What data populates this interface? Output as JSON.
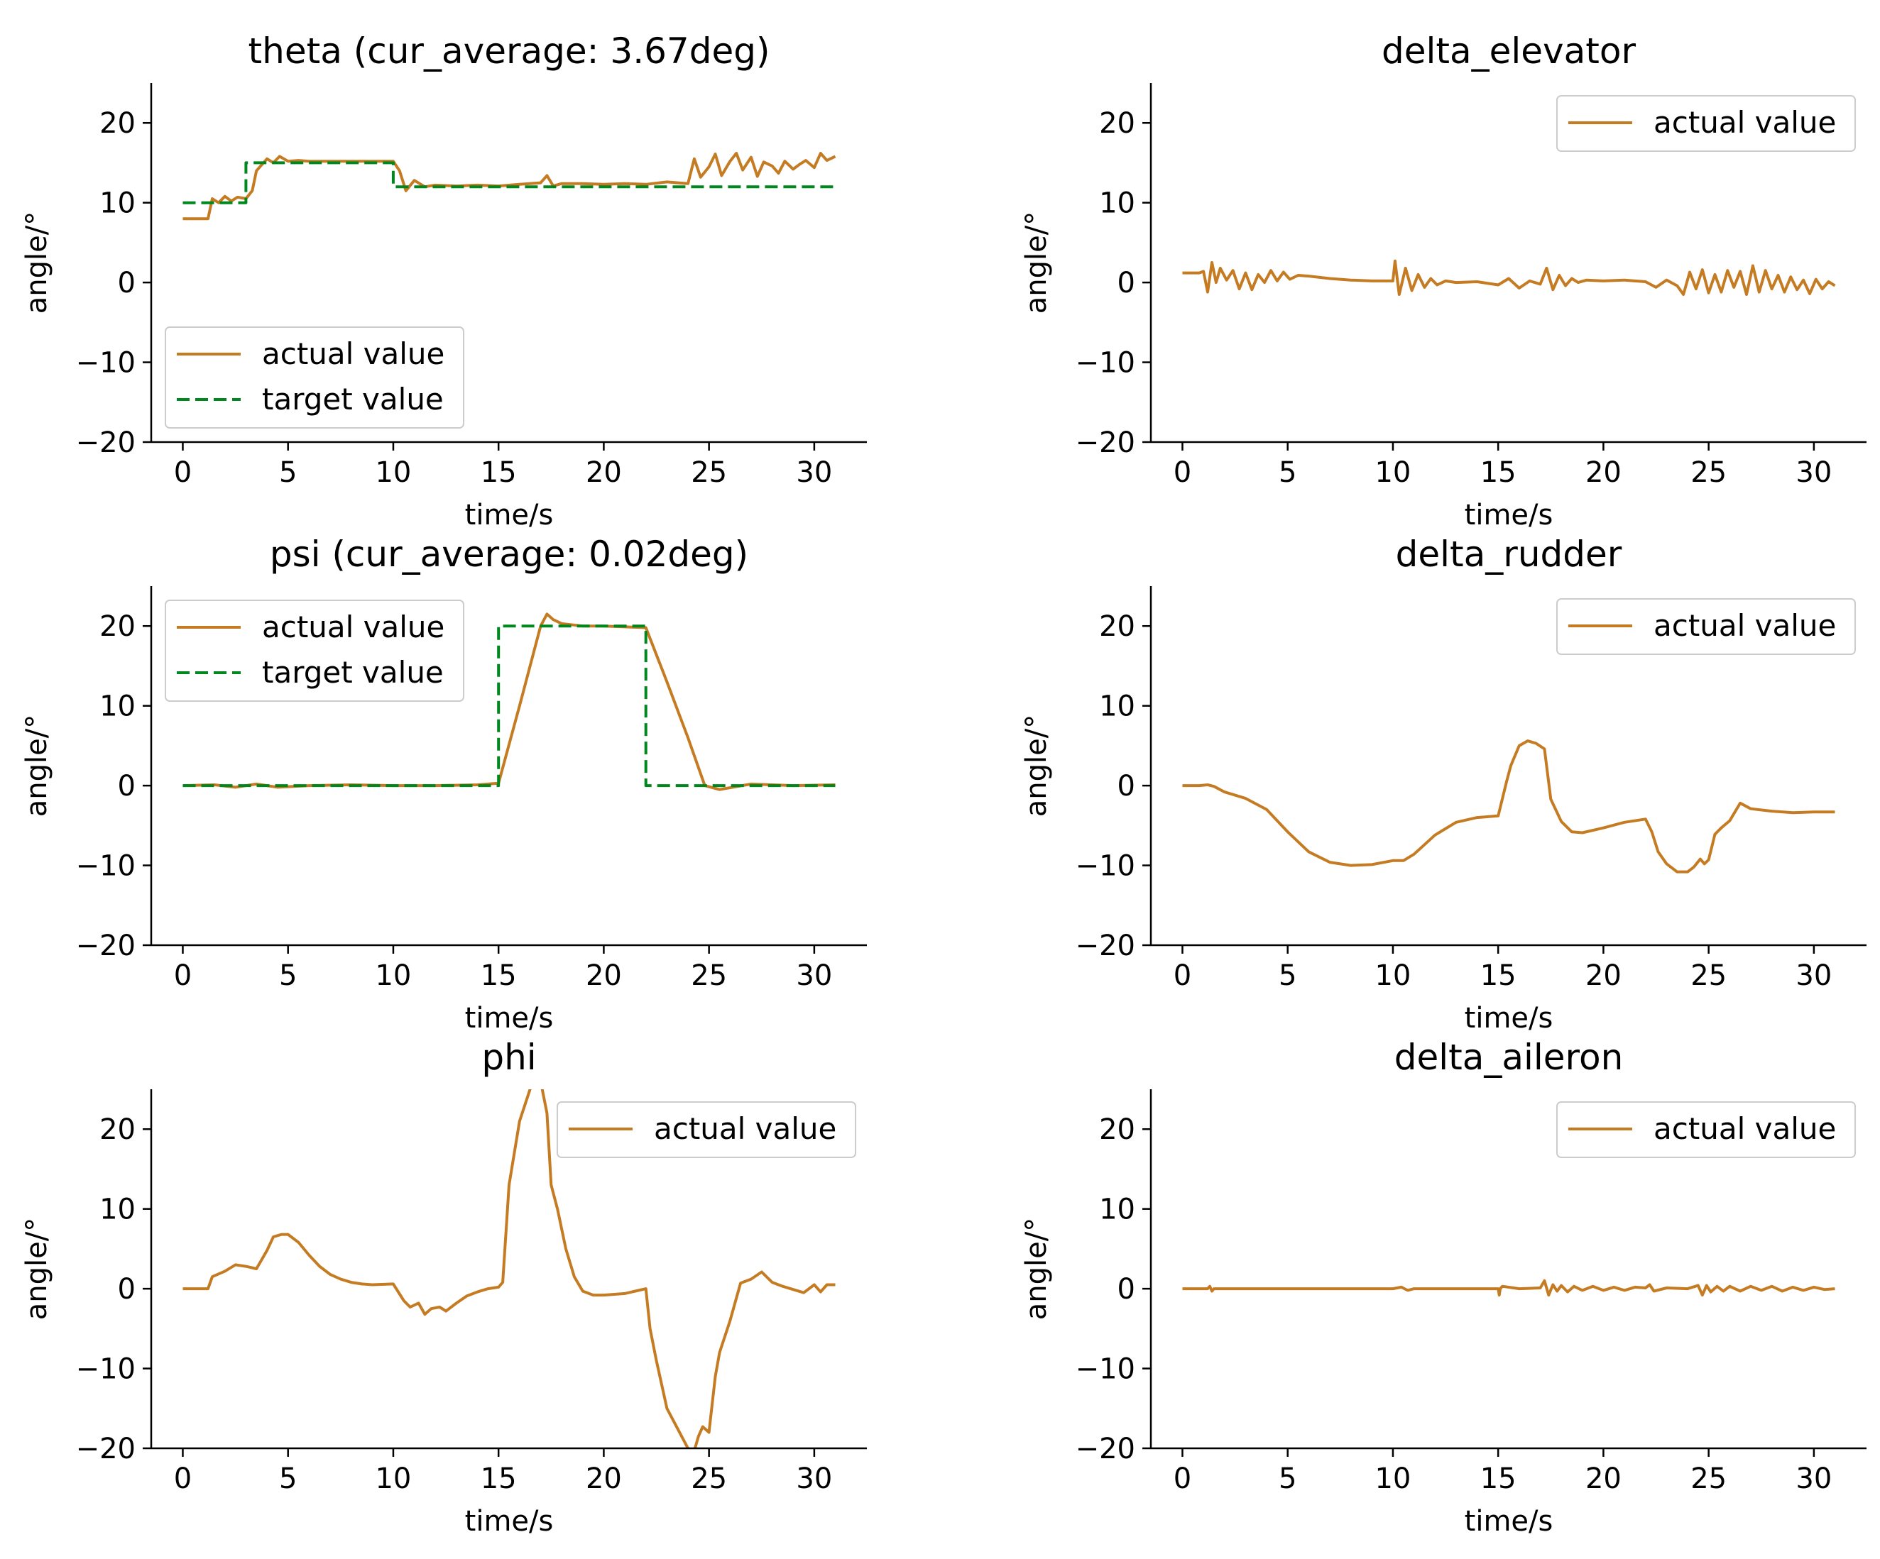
{
  "figure": {
    "colors": {
      "actual": "#c57b22",
      "target": "#00881f",
      "axes": "#000000",
      "legend_border": "#cccccc"
    }
  },
  "chart_data": [
    {
      "id": "theta",
      "type": "line",
      "title": "theta (cur_average: 3.67deg)",
      "xlabel": "time/s",
      "ylabel": "angle/°",
      "xlim": [
        -1.5,
        32.5
      ],
      "ylim": [
        -20,
        25
      ],
      "xticks": [
        0,
        5,
        10,
        15,
        20,
        25,
        30
      ],
      "yticks": [
        -20,
        -10,
        0,
        10,
        20
      ],
      "grid": false,
      "legend_loc": "lower-left",
      "series": [
        {
          "name": "actual value",
          "style": "solid",
          "x": [
            0,
            1.2,
            1.4,
            1.7,
            2.0,
            2.3,
            2.6,
            3.0,
            3.3,
            3.5,
            4.0,
            4.3,
            4.6,
            5.0,
            5.5,
            6,
            7,
            8,
            9,
            10,
            10.3,
            10.6,
            11,
            11.5,
            12,
            13,
            14,
            15,
            16,
            17,
            17.3,
            17.6,
            18,
            19,
            20,
            21,
            22,
            23,
            24,
            24.3,
            24.6,
            25,
            25.3,
            25.6,
            26,
            26.3,
            26.6,
            27,
            27.3,
            27.6,
            28,
            28.3,
            28.6,
            29,
            29.3,
            29.6,
            30,
            30.3,
            30.6,
            31
          ],
          "y": [
            8,
            8,
            10.5,
            10,
            10.8,
            10.2,
            10.7,
            10.5,
            11.5,
            14,
            15.5,
            15,
            15.8,
            15.2,
            15.3,
            15.2,
            15.2,
            15.2,
            15.2,
            15.2,
            14,
            11.5,
            12.8,
            12,
            12.2,
            12.1,
            12.2,
            12.1,
            12.3,
            12.5,
            13.4,
            12.1,
            12.4,
            12.4,
            12.3,
            12.4,
            12.3,
            12.6,
            12.4,
            15.5,
            13.2,
            14.5,
            16.1,
            13.4,
            15.2,
            16.2,
            14.1,
            15.7,
            13.3,
            15.1,
            14.6,
            13.7,
            15.2,
            14.2,
            14.8,
            15.3,
            14.4,
            16.2,
            15.3,
            15.8
          ]
        },
        {
          "name": "target value",
          "style": "dashed",
          "x": [
            0,
            3,
            3,
            10,
            10,
            31
          ],
          "y": [
            10,
            10,
            15,
            15,
            12,
            12
          ]
        }
      ]
    },
    {
      "id": "delta_elevator",
      "type": "line",
      "title": "delta_elevator",
      "xlabel": "time/s",
      "ylabel": "angle/°",
      "xlim": [
        -1.5,
        32.5
      ],
      "ylim": [
        -20,
        25
      ],
      "xticks": [
        0,
        5,
        10,
        15,
        20,
        25,
        30
      ],
      "yticks": [
        -20,
        -10,
        0,
        10,
        20
      ],
      "grid": false,
      "legend_loc": "upper-right",
      "series": [
        {
          "name": "actual value",
          "style": "solid",
          "x": [
            0,
            0.8,
            1.0,
            1.2,
            1.4,
            1.6,
            1.8,
            2.1,
            2.4,
            2.7,
            3.0,
            3.3,
            3.6,
            3.9,
            4.2,
            4.5,
            4.8,
            5.1,
            5.5,
            6,
            7,
            8,
            9,
            10,
            10.1,
            10.3,
            10.6,
            10.9,
            11.2,
            11.5,
            11.8,
            12.1,
            12.5,
            13,
            14,
            15,
            15.5,
            16,
            16.5,
            17,
            17.3,
            17.6,
            17.9,
            18.2,
            18.5,
            18.8,
            19.2,
            20,
            21,
            22,
            22.5,
            23,
            23.5,
            23.8,
            24.1,
            24.4,
            24.7,
            25.0,
            25.3,
            25.6,
            25.9,
            26.2,
            26.5,
            26.8,
            27.1,
            27.4,
            27.7,
            28.0,
            28.3,
            28.6,
            28.9,
            29.2,
            29.5,
            29.8,
            30.1,
            30.4,
            30.7,
            31
          ],
          "y": [
            1.2,
            1.2,
            1.4,
            -1.2,
            2.5,
            0,
            1.8,
            0.3,
            1.5,
            -0.8,
            1.2,
            -0.9,
            1,
            0,
            1.5,
            0.2,
            1.3,
            0.4,
            0.9,
            0.8,
            0.5,
            0.3,
            0.2,
            0.2,
            2.7,
            -1.5,
            1.8,
            -1,
            1,
            -0.6,
            0.5,
            -0.3,
            0.2,
            0,
            0.1,
            -0.3,
            0.5,
            -0.7,
            0.2,
            -0.2,
            1.8,
            -0.9,
            0.9,
            -0.4,
            0.5,
            0,
            0.3,
            0.2,
            0.3,
            0.1,
            -0.6,
            0.3,
            -0.4,
            -1.5,
            1.3,
            -0.8,
            1.6,
            -1.3,
            1,
            -1.2,
            1.5,
            -0.6,
            1.4,
            -1.5,
            2.1,
            -1.2,
            1.5,
            -0.8,
            0.9,
            -1.2,
            0.7,
            -0.9,
            0.3,
            -1.4,
            0.4,
            -0.8,
            0.1,
            -0.4
          ]
        }
      ]
    },
    {
      "id": "psi",
      "type": "line",
      "title": "psi (cur_average: 0.02deg)",
      "xlabel": "time/s",
      "ylabel": "angle/°",
      "xlim": [
        -1.5,
        32.5
      ],
      "ylim": [
        -20,
        25
      ],
      "xticks": [
        0,
        5,
        10,
        15,
        20,
        25,
        30
      ],
      "yticks": [
        -20,
        -10,
        0,
        10,
        20
      ],
      "grid": false,
      "legend_loc": "upper-left",
      "series": [
        {
          "name": "actual value",
          "style": "solid",
          "x": [
            0,
            1.5,
            2.5,
            3.5,
            4.5,
            6,
            8,
            10,
            12,
            14,
            15,
            16,
            17,
            17.3,
            17.6,
            18,
            19,
            20,
            22,
            23,
            24,
            24.8,
            25.5,
            27,
            29,
            31
          ],
          "y": [
            0,
            0.1,
            -0.2,
            0.2,
            -0.2,
            0,
            0.1,
            0,
            0,
            0.1,
            0.3,
            10,
            20,
            21.5,
            20.8,
            20.3,
            20,
            20,
            19.8,
            13,
            6,
            0,
            -0.5,
            0.2,
            0,
            0.1
          ]
        },
        {
          "name": "target value",
          "style": "dashed",
          "x": [
            0,
            15,
            15,
            22,
            22,
            31
          ],
          "y": [
            0,
            0,
            20,
            20,
            0,
            0
          ]
        }
      ]
    },
    {
      "id": "delta_rudder",
      "type": "line",
      "title": "delta_rudder",
      "xlabel": "time/s",
      "ylabel": "angle/°",
      "xlim": [
        -1.5,
        32.5
      ],
      "ylim": [
        -20,
        25
      ],
      "xticks": [
        0,
        5,
        10,
        15,
        20,
        25,
        30
      ],
      "yticks": [
        -20,
        -10,
        0,
        10,
        20
      ],
      "grid": false,
      "legend_loc": "upper-right",
      "series": [
        {
          "name": "actual value",
          "style": "solid",
          "x": [
            0,
            0.8,
            1.2,
            1.5,
            2,
            3,
            4,
            5,
            6,
            7,
            8,
            9,
            10,
            10.5,
            11,
            12,
            13,
            14,
            15,
            15.4,
            15.6,
            16,
            16.4,
            16.8,
            17.2,
            17.5,
            18,
            18.5,
            19,
            20,
            21,
            22,
            22.3,
            22.6,
            23,
            23.5,
            24,
            24.3,
            24.6,
            24.8,
            25,
            25.3,
            25.6,
            26,
            26.5,
            27,
            28,
            29,
            30,
            31
          ],
          "y": [
            0,
            0,
            0.1,
            -0.1,
            -0.8,
            -1.6,
            -3,
            -5.8,
            -8.3,
            -9.6,
            -10,
            -9.9,
            -9.4,
            -9.4,
            -8.6,
            -6.2,
            -4.6,
            -4,
            -3.8,
            0.5,
            2.5,
            5,
            5.6,
            5.3,
            4.6,
            -1.7,
            -4.5,
            -5.8,
            -5.9,
            -5.3,
            -4.6,
            -4.2,
            -5.8,
            -8.3,
            -9.8,
            -10.8,
            -10.8,
            -10.2,
            -9.2,
            -9.8,
            -9.3,
            -6.1,
            -5.3,
            -4.4,
            -2.2,
            -2.9,
            -3.2,
            -3.4,
            -3.3,
            -3.3
          ]
        }
      ]
    },
    {
      "id": "phi",
      "type": "line",
      "title": "phi",
      "xlabel": "time/s",
      "ylabel": "angle/°",
      "xlim": [
        -1.5,
        32.5
      ],
      "ylim": [
        -20,
        25
      ],
      "xticks": [
        0,
        5,
        10,
        15,
        20,
        25,
        30
      ],
      "yticks": [
        -20,
        -10,
        0,
        10,
        20
      ],
      "grid": false,
      "legend_loc": "upper-right",
      "series": [
        {
          "name": "actual value",
          "style": "solid",
          "x": [
            0,
            1.2,
            1.4,
            2,
            2.5,
            3,
            3.5,
            4,
            4.3,
            4.7,
            5,
            5.5,
            6,
            6.5,
            7,
            7.5,
            8,
            8.5,
            9,
            10,
            10.5,
            10.8,
            11.2,
            11.5,
            11.8,
            12.2,
            12.5,
            13,
            13.5,
            14,
            14.5,
            15,
            15.2,
            15.5,
            16,
            16.5,
            16.7,
            17,
            17.3,
            17.5,
            17.8,
            18.2,
            18.6,
            19,
            19.5,
            20,
            21,
            21.5,
            22,
            22.2,
            22.5,
            23,
            23.5,
            24,
            24.3,
            24.5,
            24.7,
            25,
            25.3,
            25.5,
            26,
            26.5,
            27,
            27.5,
            28,
            28.5,
            29,
            29.5,
            30,
            30.3,
            30.6,
            31
          ],
          "y": [
            0,
            0,
            1.5,
            2.2,
            3,
            2.8,
            2.5,
            4.8,
            6.5,
            6.8,
            6.8,
            5.8,
            4.2,
            2.8,
            1.8,
            1.2,
            0.8,
            0.6,
            0.5,
            0.6,
            -1.5,
            -2.3,
            -1.8,
            -3.2,
            -2.5,
            -2.3,
            -2.8,
            -1.8,
            -0.9,
            -0.4,
            0,
            0.2,
            0.8,
            13,
            21,
            25,
            26.5,
            26,
            22,
            13,
            10,
            5,
            1.5,
            -0.3,
            -0.8,
            -0.8,
            -0.6,
            -0.3,
            0,
            -5,
            -9,
            -15,
            -17.5,
            -20,
            -20.3,
            -18.5,
            -17.3,
            -18,
            -11,
            -8,
            -4,
            0.7,
            1.2,
            2.1,
            0.8,
            0.3,
            -0.1,
            -0.5,
            0.5,
            -0.4,
            0.5,
            0.5
          ]
        }
      ]
    },
    {
      "id": "delta_aileron",
      "type": "line",
      "title": "delta_aileron",
      "xlabel": "time/s",
      "ylabel": "angle/°",
      "xlim": [
        -1.5,
        32.5
      ],
      "ylim": [
        -20,
        25
      ],
      "xticks": [
        0,
        5,
        10,
        15,
        20,
        25,
        30
      ],
      "yticks": [
        -20,
        -10,
        0,
        10,
        20
      ],
      "grid": false,
      "legend_loc": "upper-right",
      "series": [
        {
          "name": "actual value",
          "style": "solid",
          "x": [
            0,
            1.2,
            1.3,
            1.4,
            1.5,
            3,
            5,
            8,
            10,
            10.4,
            10.7,
            11,
            12,
            14,
            15,
            15.05,
            15.1,
            15.2,
            16,
            17,
            17.2,
            17.4,
            17.6,
            17.8,
            18,
            18.3,
            18.6,
            19,
            19.5,
            20,
            20.5,
            21,
            21.5,
            22,
            22.2,
            22.4,
            23,
            24,
            24.5,
            24.7,
            24.9,
            25.1,
            25.4,
            25.7,
            26,
            26.5,
            27,
            27.5,
            28,
            28.5,
            29,
            29.5,
            30,
            30.5,
            31
          ],
          "y": [
            0,
            0,
            0.3,
            -0.3,
            0,
            0,
            0,
            0,
            0,
            0.2,
            -0.2,
            0,
            0,
            0,
            0,
            -0.8,
            0,
            0.3,
            0,
            0.1,
            1,
            -0.8,
            0.5,
            -0.3,
            0.4,
            -0.4,
            0.3,
            -0.2,
            0.3,
            -0.2,
            0.2,
            -0.2,
            0.2,
            0.1,
            0.5,
            -0.3,
            0.1,
            0,
            0.4,
            -0.8,
            0.4,
            -0.4,
            0.3,
            -0.3,
            0.3,
            -0.3,
            0.3,
            -0.2,
            0.3,
            -0.3,
            0.2,
            -0.2,
            0.2,
            -0.1,
            0
          ]
        }
      ]
    }
  ]
}
